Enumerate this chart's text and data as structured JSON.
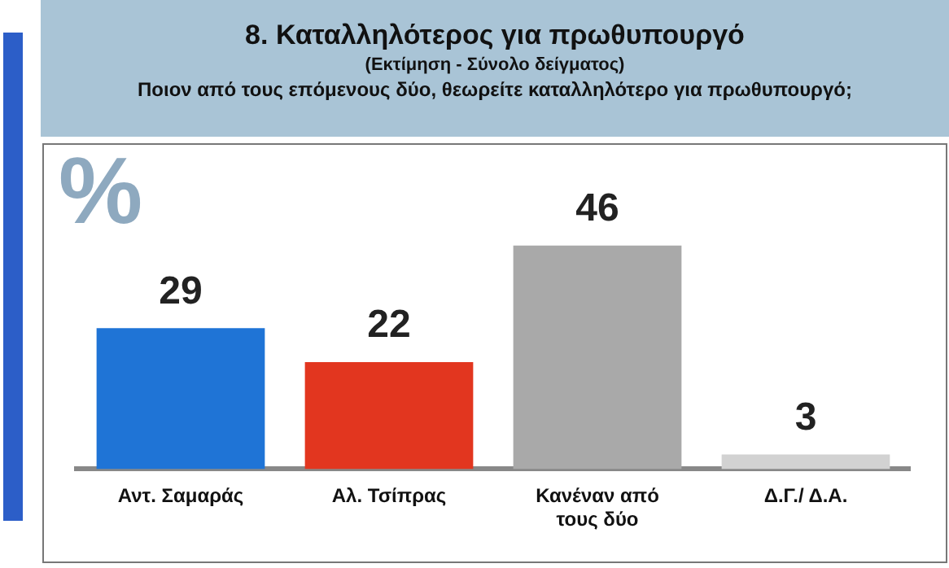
{
  "chart_data": {
    "type": "bar",
    "title": "8. Καταλληλότερος για πρωθυπουργό",
    "subtitle": "(Εκτίμηση - Σύνολο δείγματος)",
    "annotations": [
      "Ποιον από τους επόμενους δύο, θεωρείτε καταλληλότερο για πρωθυπουργό;"
    ],
    "ylabel": "%",
    "categories": [
      "Αντ. Σαμαράς",
      "Αλ. Τσίπρας",
      "Κανέναν από τους δύο",
      "Δ.Γ./ Δ.Α."
    ],
    "values": [
      29,
      22,
      46,
      3
    ],
    "colors": [
      "#1f74d6",
      "#e2361f",
      "#a9a9a9",
      "#d2d2d2"
    ],
    "data_labels": true,
    "grid": false,
    "legend": false
  }
}
